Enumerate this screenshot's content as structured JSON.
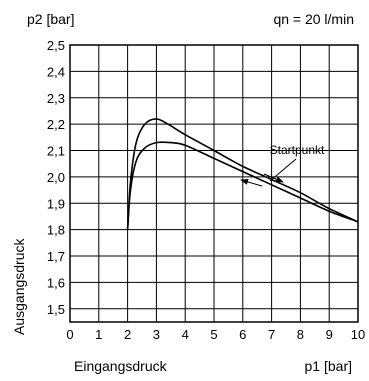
{
  "chart_data": {
    "type": "line",
    "title": "",
    "corner_label_left": "p2 [bar]",
    "corner_label_right": "qn = 20 l/min",
    "xlabel": "Eingangsdruck",
    "xlabel_right": "p1 [bar]",
    "ylabel": "Ausgangsdruck",
    "xlim": [
      0,
      10
    ],
    "ylim": [
      1.45,
      2.5
    ],
    "x_ticks": [
      0,
      1,
      2,
      3,
      4,
      5,
      6,
      7,
      8,
      9,
      10
    ],
    "x_tick_labels": [
      "0",
      "1",
      "2",
      "3",
      "4",
      "5",
      "6",
      "7",
      "8",
      "9",
      "10"
    ],
    "y_ticks": [
      1.5,
      1.6,
      1.7,
      1.8,
      1.9,
      2.0,
      2.1,
      2.2,
      2.3,
      2.4,
      2.5
    ],
    "y_tick_labels": [
      "1,5",
      "1,6",
      "1,7",
      "1,8",
      "1,9",
      "2,0",
      "2,1",
      "2,2",
      "2,3",
      "2,4",
      "2,5"
    ],
    "grid": true,
    "annotation": "Startpunkt",
    "series": [
      {
        "x": [
          2.0,
          2.1,
          2.3,
          2.6,
          3.0,
          3.4,
          4.0,
          5.0,
          6.0,
          7.0,
          8.0,
          9.0,
          10.0
        ],
        "y": [
          1.8,
          1.98,
          2.13,
          2.2,
          2.22,
          2.2,
          2.16,
          2.1,
          2.04,
          1.99,
          1.94,
          1.88,
          1.83
        ]
      },
      {
        "x": [
          2.0,
          2.1,
          2.3,
          2.6,
          3.0,
          3.5,
          4.0,
          5.0,
          6.0,
          7.0,
          8.0,
          9.0,
          10.0
        ],
        "y": [
          1.8,
          1.95,
          2.06,
          2.11,
          2.13,
          2.13,
          2.12,
          2.07,
          2.02,
          1.97,
          1.92,
          1.87,
          1.83
        ]
      }
    ]
  }
}
